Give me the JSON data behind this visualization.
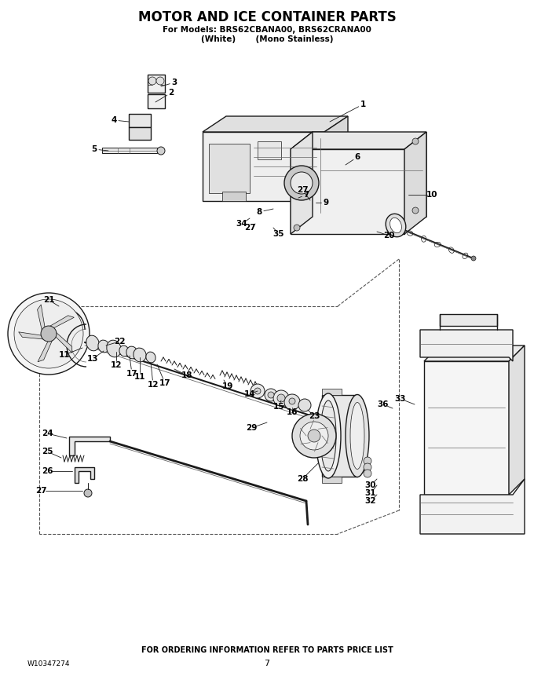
{
  "title": "MOTOR AND ICE CONTAINER PARTS",
  "subtitle1": "For Models: BRS62CBANA00, BRS62CRANA00",
  "subtitle2": "(White)       (Mono Stainless)",
  "footer_center": "FOR ORDERING INFORMATION REFER TO PARTS PRICE LIST",
  "footer_left": "W10347274",
  "footer_page": "7",
  "bg_color": "#ffffff",
  "title_fontsize": 12,
  "subtitle_fontsize": 7.5,
  "footer_fontsize": 7,
  "fig_width": 6.8,
  "fig_height": 8.8,
  "dpi": 100
}
